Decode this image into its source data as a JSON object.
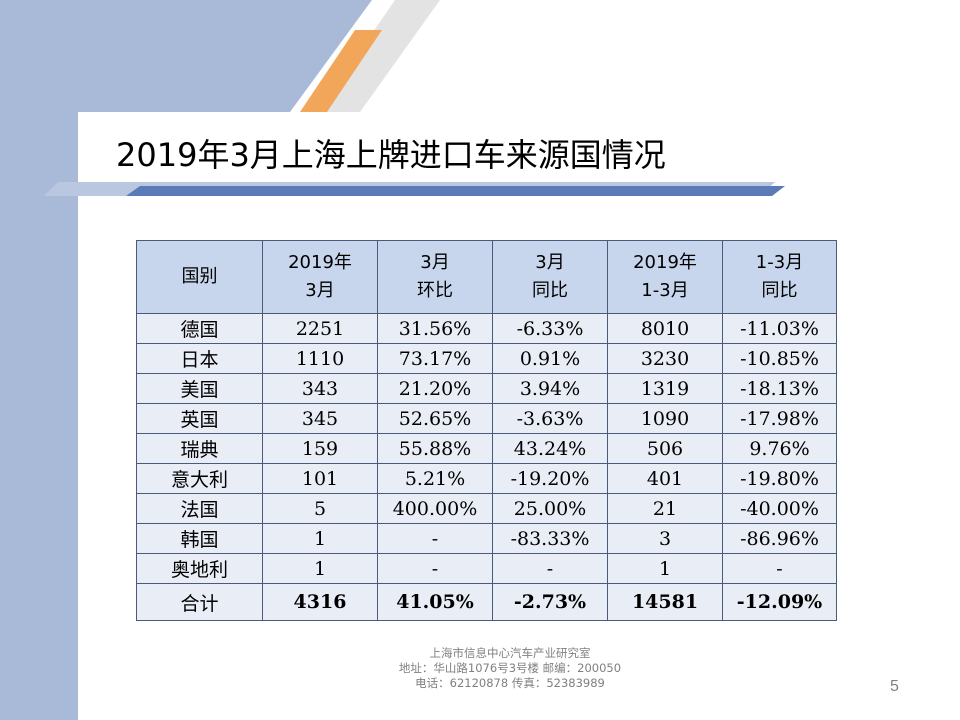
{
  "slide": {
    "title": "2019年3月上海上牌进口车来源国情况",
    "page_number": "5",
    "colors": {
      "left_band": "#a9bad9",
      "accent_orange": "#f4a460",
      "header_fill": "#c8d6ed",
      "row_fill": "#e8edf6",
      "title_rule": "#5a7ab8"
    }
  },
  "table": {
    "headers": [
      [
        "国别"
      ],
      [
        "2019年",
        "3月"
      ],
      [
        "3月",
        "环比"
      ],
      [
        "3月",
        "同比"
      ],
      [
        "2019年",
        "1-3月"
      ],
      [
        "1-3月",
        "同比"
      ]
    ],
    "rows": [
      [
        "德国",
        "2251",
        "31.56%",
        "-6.33%",
        "8010",
        "-11.03%"
      ],
      [
        "日本",
        "1110",
        "73.17%",
        "0.91%",
        "3230",
        "-10.85%"
      ],
      [
        "美国",
        "343",
        "21.20%",
        "3.94%",
        "1319",
        "-18.13%"
      ],
      [
        "英国",
        "345",
        "52.65%",
        "-3.63%",
        "1090",
        "-17.98%"
      ],
      [
        "瑞典",
        "159",
        "55.88%",
        "43.24%",
        "506",
        "9.76%"
      ],
      [
        "意大利",
        "101",
        "5.21%",
        "-19.20%",
        "401",
        "-19.80%"
      ],
      [
        "法国",
        "5",
        "400.00%",
        "25.00%",
        "21",
        "-40.00%"
      ],
      [
        "韩国",
        "1",
        "-",
        "-83.33%",
        "3",
        "-86.96%"
      ],
      [
        "奥地利",
        "1",
        "-",
        "-",
        "1",
        "-"
      ]
    ],
    "total": [
      "合计",
      "4316",
      "41.05%",
      "-2.73%",
      "14581",
      "-12.09%"
    ]
  },
  "footer": {
    "line1": "上海市信息中心汽车产业研究室",
    "line2": "地址：华山路1076号3号楼   邮编：200050",
    "line3": "电话：62120878  传真：52383989"
  }
}
